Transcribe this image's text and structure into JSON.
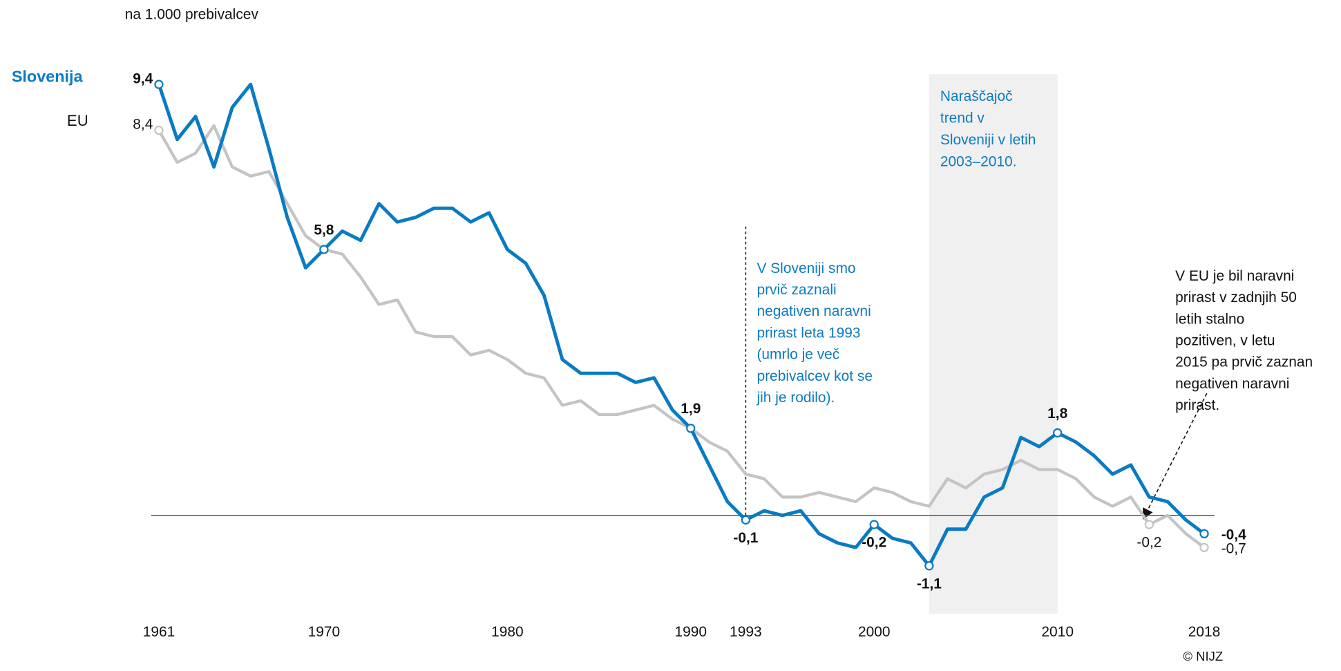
{
  "chart_data": {
    "type": "line",
    "unit_label": "na 1.000 prebivalcev",
    "credit": "© NIJZ",
    "x": [
      1961,
      1962,
      1963,
      1964,
      1965,
      1966,
      1967,
      1968,
      1969,
      1970,
      1971,
      1972,
      1973,
      1974,
      1975,
      1976,
      1977,
      1978,
      1979,
      1980,
      1981,
      1982,
      1983,
      1984,
      1985,
      1986,
      1987,
      1988,
      1989,
      1990,
      1991,
      1992,
      1993,
      1994,
      1995,
      1996,
      1997,
      1998,
      1999,
      2000,
      2001,
      2002,
      2003,
      2004,
      2005,
      2006,
      2007,
      2008,
      2009,
      2010,
      2011,
      2012,
      2013,
      2014,
      2015,
      2016,
      2017,
      2018
    ],
    "xlim": [
      1961,
      2018
    ],
    "xticks": [
      1961,
      1970,
      1980,
      1990,
      1993,
      2000,
      2010,
      2018
    ],
    "ylim": [
      -2,
      9.7
    ],
    "series": [
      {
        "name": "Slovenija",
        "color": "#0a7bc2",
        "values": [
          9.4,
          8.2,
          8.7,
          7.6,
          8.9,
          9.4,
          8.0,
          6.5,
          5.4,
          5.8,
          6.2,
          6.0,
          6.8,
          6.4,
          6.5,
          6.7,
          6.7,
          6.4,
          6.6,
          5.8,
          5.5,
          4.8,
          3.4,
          3.1,
          3.1,
          3.1,
          2.9,
          3.0,
          2.3,
          1.9,
          1.1,
          0.3,
          -0.1,
          0.1,
          0.0,
          0.1,
          -0.4,
          -0.6,
          -0.7,
          -0.2,
          -0.5,
          -0.6,
          -1.1,
          -0.3,
          -0.3,
          0.4,
          0.6,
          1.7,
          1.5,
          1.8,
          1.6,
          1.3,
          0.9,
          1.1,
          0.4,
          0.3,
          -0.1,
          -0.4
        ],
        "value_labels": [
          "9,4",
          null,
          null,
          null,
          null,
          null,
          null,
          null,
          null,
          "5,8",
          null,
          null,
          null,
          null,
          null,
          null,
          null,
          null,
          null,
          null,
          null,
          null,
          null,
          null,
          null,
          null,
          null,
          null,
          null,
          "1,9",
          null,
          null,
          "-0,1",
          null,
          null,
          null,
          null,
          null,
          null,
          "-0,2",
          null,
          null,
          "-1,1",
          null,
          null,
          null,
          null,
          null,
          null,
          "1,8",
          null,
          null,
          null,
          null,
          null,
          null,
          null,
          "-0,4"
        ]
      },
      {
        "name": "EU",
        "color": "#c4c4c4",
        "values": [
          8.4,
          7.7,
          7.9,
          8.5,
          7.6,
          7.4,
          7.5,
          6.8,
          6.1,
          5.8,
          5.7,
          5.2,
          4.6,
          4.7,
          4.0,
          3.9,
          3.9,
          3.5,
          3.6,
          3.4,
          3.1,
          3.0,
          2.4,
          2.5,
          2.2,
          2.2,
          2.3,
          2.4,
          2.1,
          1.9,
          1.6,
          1.4,
          0.9,
          0.8,
          0.4,
          0.4,
          0.5,
          0.4,
          0.3,
          0.6,
          0.5,
          0.3,
          0.2,
          0.8,
          0.6,
          0.9,
          1.0,
          1.2,
          1.0,
          1.0,
          0.8,
          0.4,
          0.2,
          0.4,
          -0.2,
          0.0,
          -0.4,
          -0.7
        ],
        "value_labels": [
          "8,4",
          null,
          null,
          null,
          null,
          null,
          null,
          null,
          null,
          null,
          null,
          null,
          null,
          null,
          null,
          null,
          null,
          null,
          null,
          null,
          null,
          null,
          null,
          null,
          null,
          null,
          null,
          null,
          null,
          null,
          null,
          null,
          null,
          null,
          null,
          null,
          null,
          null,
          null,
          null,
          null,
          null,
          null,
          null,
          null,
          null,
          null,
          null,
          null,
          null,
          null,
          null,
          null,
          null,
          "-0,2",
          null,
          null,
          "-0,7"
        ]
      }
    ],
    "annotations": [
      {
        "x": 1993,
        "lines": [
          "V Sloveniji smo",
          "prvič zaznali",
          "negativen naravni",
          "prirast leta 1993",
          "(umrlo je več",
          "prebivalcev kot se",
          "jih je rodilo)."
        ]
      },
      {
        "span": [
          2003,
          2010
        ],
        "lines": [
          "Naraščajoč",
          "trend v",
          "Sloveniji v letih",
          "2003–2010."
        ]
      },
      {
        "lines": [
          "V EU je bil naravni",
          "prirast v zadnjih 50",
          "letih stalno",
          "pozitiven, v letu",
          "2015 pa prvič zaznan",
          "negativen naravni",
          "prirast."
        ]
      }
    ]
  }
}
